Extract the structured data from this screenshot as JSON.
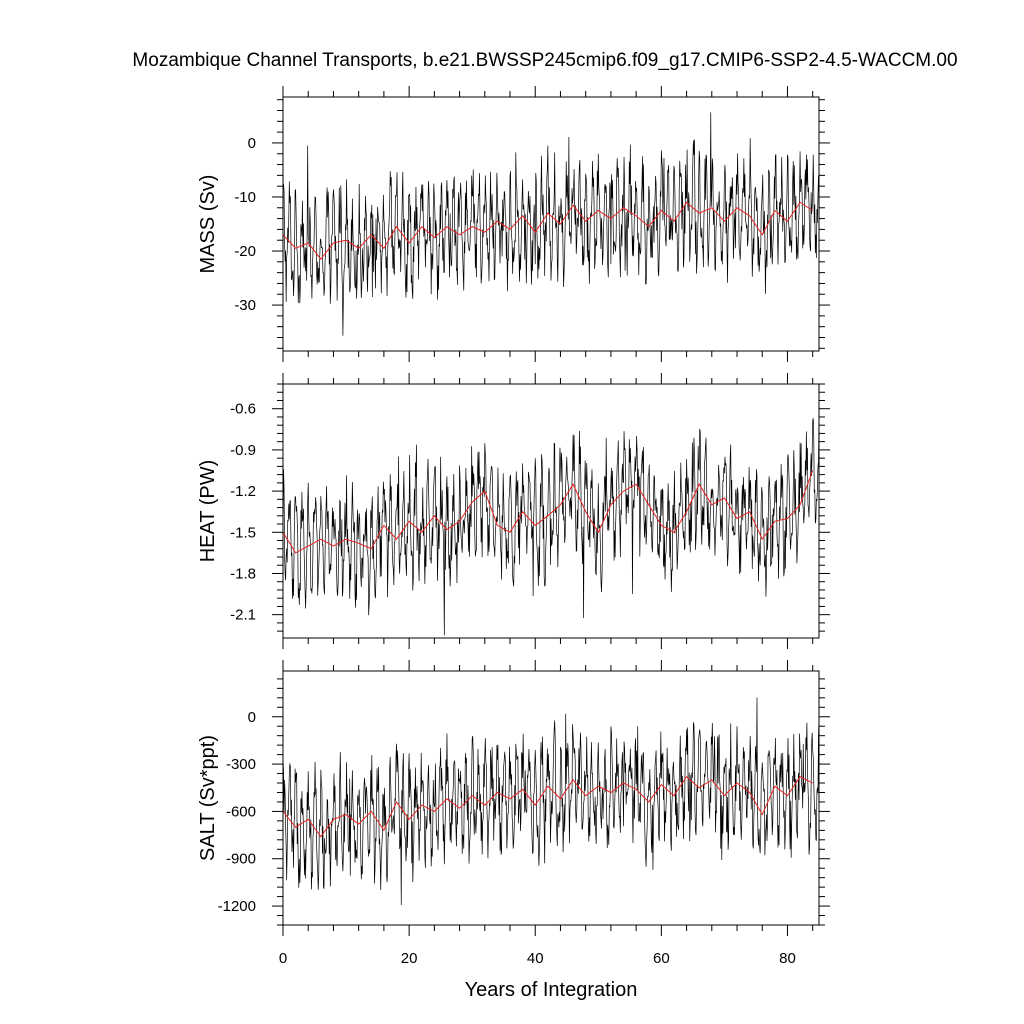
{
  "chart_data": {
    "type": "line",
    "title": "Mozambique Channel Transports, b.e21.BWSSP245cmip6.f09_g17.CMIP6-SSP2-4.5-WACCM.00",
    "xlabel": "Years of Integration",
    "xlim": [
      0,
      85
    ],
    "xticks": [
      0,
      20,
      40,
      60,
      80
    ],
    "xtick_labels": [
      "0",
      "20",
      "40",
      "60",
      "80"
    ],
    "colors": {
      "raw": "#000000",
      "smooth": "#e8211e"
    },
    "panels": [
      {
        "ylabel": "MASS (Sv)",
        "ylim": [
          -38.5,
          8.5
        ],
        "yticks": [
          0,
          -10,
          -20,
          -30
        ],
        "ytick_labels": [
          "0",
          "-10",
          "-20",
          "-30"
        ],
        "raw_range": [
          -38,
          8
        ],
        "smooth_x": [
          0,
          2,
          4,
          6,
          8,
          10,
          12,
          14,
          16,
          18,
          20,
          22,
          24,
          26,
          28,
          30,
          32,
          34,
          36,
          38,
          40,
          42,
          44,
          46,
          48,
          50,
          52,
          54,
          56,
          58,
          60,
          62,
          64,
          66,
          68,
          70,
          72,
          74,
          76,
          78,
          80,
          82,
          84
        ],
        "smooth_y": [
          -17,
          -19.5,
          -18.5,
          -21.5,
          -18.5,
          -18,
          -19.5,
          -17,
          -19.5,
          -15.5,
          -18.5,
          -15.5,
          -17.5,
          -15.5,
          -17,
          -15.5,
          -16.5,
          -14.5,
          -16,
          -13.5,
          -16.5,
          -13,
          -15,
          -11.5,
          -14.5,
          -12.5,
          -14,
          -12,
          -13.5,
          -15.5,
          -12.5,
          -14.5,
          -11,
          -13,
          -12,
          -14.5,
          -12,
          -13.5,
          -17,
          -12.5,
          -14.5,
          -11,
          -12.5
        ],
        "series": [
          {
            "name": ""
          },
          {
            "name": ""
          }
        ]
      },
      {
        "ylabel": "HEAT (PW)",
        "ylim": [
          -2.27,
          -0.42
        ],
        "yticks": [
          -0.6,
          -0.9,
          -1.2,
          -1.5,
          -1.8,
          -2.1
        ],
        "ytick_labels": [
          "-0.6",
          "-0.9",
          "-1.2",
          "-1.5",
          "-1.8",
          "-2.1"
        ],
        "raw_range": [
          -2.25,
          -0.45
        ],
        "smooth_x": [
          0,
          2,
          4,
          6,
          8,
          10,
          12,
          14,
          16,
          18,
          20,
          22,
          24,
          26,
          28,
          30,
          32,
          34,
          36,
          38,
          40,
          42,
          44,
          46,
          48,
          50,
          52,
          54,
          56,
          58,
          60,
          62,
          64,
          66,
          68,
          70,
          72,
          74,
          76,
          78,
          80,
          82,
          84
        ],
        "smooth_y": [
          -1.5,
          -1.65,
          -1.6,
          -1.55,
          -1.6,
          -1.55,
          -1.58,
          -1.62,
          -1.45,
          -1.55,
          -1.42,
          -1.5,
          -1.38,
          -1.48,
          -1.42,
          -1.28,
          -1.2,
          -1.45,
          -1.5,
          -1.35,
          -1.45,
          -1.38,
          -1.3,
          -1.15,
          -1.35,
          -1.5,
          -1.3,
          -1.2,
          -1.15,
          -1.3,
          -1.45,
          -1.5,
          -1.35,
          -1.15,
          -1.3,
          -1.25,
          -1.4,
          -1.35,
          -1.55,
          -1.42,
          -1.4,
          -1.3,
          -1.05
        ],
        "series": [
          {
            "name": ""
          },
          {
            "name": ""
          }
        ]
      },
      {
        "ylabel": "SALT (Sv*ppt)",
        "ylim": [
          -1320,
          290
        ],
        "yticks": [
          0,
          -300,
          -600,
          -900,
          -1200
        ],
        "ytick_labels": [
          "0",
          "-300",
          "-600",
          "-900",
          "-1200"
        ],
        "raw_range": [
          -1300,
          280
        ],
        "smooth_x": [
          0,
          2,
          4,
          6,
          8,
          10,
          12,
          14,
          16,
          18,
          20,
          22,
          24,
          26,
          28,
          30,
          32,
          34,
          36,
          38,
          40,
          42,
          44,
          46,
          48,
          50,
          52,
          54,
          56,
          58,
          60,
          62,
          64,
          66,
          68,
          70,
          72,
          74,
          76,
          78,
          80,
          82,
          84
        ],
        "smooth_y": [
          -600,
          -700,
          -650,
          -760,
          -650,
          -620,
          -680,
          -600,
          -720,
          -540,
          -650,
          -560,
          -600,
          -520,
          -580,
          -500,
          -560,
          -480,
          -520,
          -460,
          -560,
          -440,
          -520,
          -400,
          -500,
          -440,
          -480,
          -420,
          -460,
          -540,
          -430,
          -500,
          -380,
          -450,
          -400,
          -500,
          -420,
          -480,
          -620,
          -440,
          -500,
          -380,
          -420
        ],
        "series": [
          {
            "name": ""
          },
          {
            "name": ""
          }
        ]
      }
    ]
  }
}
